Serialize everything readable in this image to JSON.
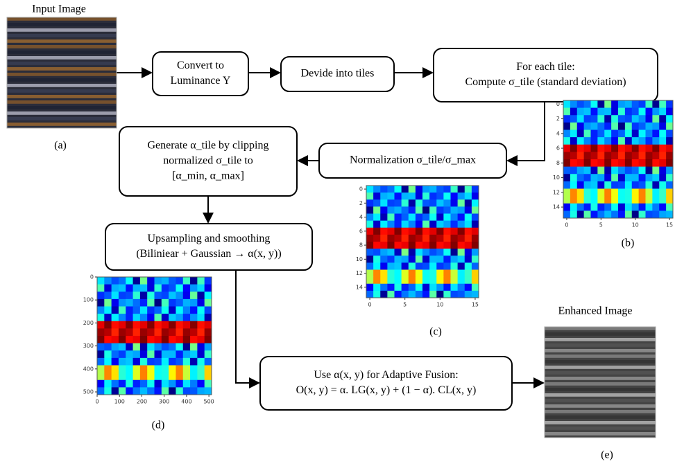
{
  "images": {
    "a": {
      "title": "Input Image",
      "caption": "(a)"
    },
    "e": {
      "title": "Enhanced Image",
      "caption": "(e)"
    }
  },
  "nodes": [
    {
      "lines": [
        "Convert to",
        "Luminance Y"
      ]
    },
    {
      "lines": [
        "Devide into tiles"
      ]
    },
    {
      "lines": [
        "For each tile:",
        "Compute σ_tile (standard deviation)"
      ]
    },
    {
      "lines": [
        "Normalization σ_tile/σ_max"
      ]
    },
    {
      "lines": [
        "Generate α_tile by clipping",
        "normalized σ_tile to",
        "[α_min, α_max]"
      ]
    },
    {
      "lines": [
        "Upsampling and smoothing",
        "(Biliniear + Gaussian → α(x, y))"
      ]
    },
    {
      "lines": [
        "Use α(x, y) for Adaptive Fusion:",
        "O(x, y) = α. LG(x, y) + (1 − α). CL(x, y)"
      ]
    }
  ],
  "heatmaps": {
    "b": {
      "caption": "(b)",
      "yticks": [
        0,
        2,
        4,
        6,
        8,
        10,
        12,
        14
      ],
      "xticks": [
        0,
        5,
        10,
        15
      ]
    },
    "c": {
      "caption": "(c)",
      "yticks": [
        0,
        2,
        4,
        6,
        8,
        10,
        12,
        14
      ],
      "xticks": [
        0,
        5,
        10,
        15
      ]
    },
    "d": {
      "caption": "(d)",
      "yticks": [
        0,
        100,
        200,
        300,
        400,
        500
      ],
      "xticks": [
        0,
        100,
        200,
        300,
        400,
        500
      ]
    }
  }
}
